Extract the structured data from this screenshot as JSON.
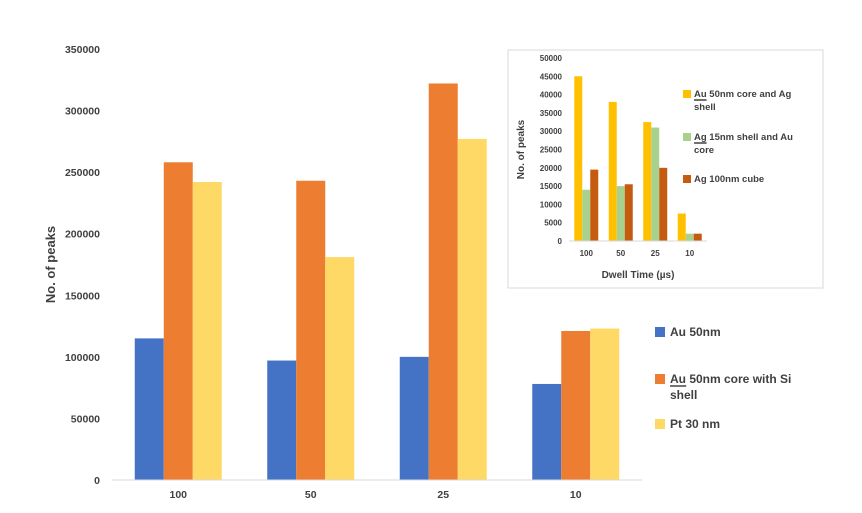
{
  "chart_data": [
    {
      "type": "bar",
      "ylabel": "No. of peaks",
      "xlabel": "",
      "ylim": [
        0,
        350000
      ],
      "ytick_step": 50000,
      "y_ticks": [
        "0",
        "50000",
        "100000",
        "150000",
        "200000",
        "250000",
        "300000",
        "350000"
      ],
      "categories": [
        "100",
        "50",
        "25",
        "10"
      ],
      "series": [
        {
          "name": "Au 50nm",
          "values": [
            115000,
            97000,
            100000,
            78000
          ],
          "color": "#4472C4"
        },
        {
          "name": "Au 50nm core with Si shell",
          "name_lines": [
            "Au 50nm core with Si",
            "shell"
          ],
          "underlined_word": "Au",
          "values": [
            258000,
            243000,
            322000,
            121000
          ],
          "color": "#ED7D31"
        },
        {
          "name": "Pt 30 nm",
          "values": [
            242000,
            181000,
            277000,
            123000
          ],
          "color": "#FFD966"
        }
      ],
      "legend_position": "right",
      "grid": false
    },
    {
      "type": "bar",
      "ylabel": "No. of peaks",
      "xlabel": "Dwell Time (µs)",
      "ylim": [
        0,
        50000
      ],
      "ytick_step": 5000,
      "y_ticks": [
        "0",
        "5000",
        "10000",
        "15000",
        "20000",
        "25000",
        "30000",
        "35000",
        "40000",
        "45000",
        "50000"
      ],
      "categories": [
        "100",
        "50",
        "25",
        "10"
      ],
      "series": [
        {
          "name": "Au 50nm core and Ag shell",
          "name_lines": [
            "Au 50nm core and Ag",
            "shell"
          ],
          "underlined_word": "Au",
          "values": [
            45000,
            38000,
            32500,
            7500
          ],
          "color": "#FFC000"
        },
        {
          "name": "Ag 15nm shell and Au core",
          "name_lines": [
            "Ag 15nm shell and Au",
            "core"
          ],
          "underlined_word": "Ag",
          "values": [
            14000,
            15000,
            31000,
            2000
          ],
          "color": "#A9D18E"
        },
        {
          "name": "Ag 100nm cube",
          "name_lines": [
            "Ag 100nm cube"
          ],
          "values": [
            19500,
            15500,
            20000,
            2000
          ],
          "color": "#C55A11"
        }
      ],
      "legend_position": "right",
      "grid": false
    }
  ]
}
